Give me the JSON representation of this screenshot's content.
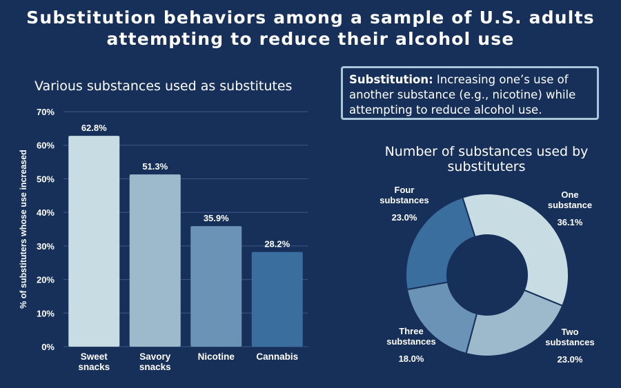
{
  "title": {
    "line1": "Substitution behaviors among a sample of U.S. adults",
    "line2": "attempting to reduce their alcohol use"
  },
  "definition": {
    "term": "Substitution:",
    "text": "Increasing one’s use of another substance (e.g., nicotine) while attempting to reduce alcohol use."
  },
  "colors": {
    "background": "#17305a",
    "bar_1": "#c8dde3",
    "bar_2": "#9dbacd",
    "bar_3": "#6b93b6",
    "bar_4": "#3a6e9e"
  },
  "chart_data": [
    {
      "type": "bar",
      "title": "Various substances used as substitutes",
      "ylabel": "% of substituters whose use increased",
      "xlabel": "",
      "categories": [
        [
          "Sweet",
          "snacks"
        ],
        [
          "Savory",
          "snacks"
        ],
        [
          "Nicotine"
        ],
        [
          "Cannabis"
        ]
      ],
      "values": [
        62.8,
        51.3,
        35.9,
        28.2
      ],
      "value_labels": [
        "62.8%",
        "51.3%",
        "35.9%",
        "28.2%"
      ],
      "ylim": [
        0,
        70
      ],
      "yticks": [
        0,
        10,
        20,
        30,
        40,
        50,
        60,
        70
      ],
      "ytick_labels": [
        "0%",
        "10%",
        "20%",
        "30%",
        "40%",
        "50%",
        "60%",
        "70%"
      ],
      "grid": true
    },
    {
      "type": "pie",
      "style": "donut",
      "title": "Number of substances used by substituters",
      "slices": [
        {
          "label": [
            "One",
            "substance"
          ],
          "value": 36.1,
          "value_label": "36.1%",
          "color": "#c8dde3"
        },
        {
          "label": [
            "Two",
            "substances"
          ],
          "value": 23.0,
          "value_label": "23.0%",
          "color": "#9dbacd"
        },
        {
          "label": [
            "Three",
            "substances"
          ],
          "value": 18.0,
          "value_label": "18.0%",
          "color": "#6b93b6"
        },
        {
          "label": [
            "Four",
            "substances"
          ],
          "value": 23.0,
          "value_label": "23.0%",
          "color": "#3a6e9e"
        }
      ]
    }
  ]
}
